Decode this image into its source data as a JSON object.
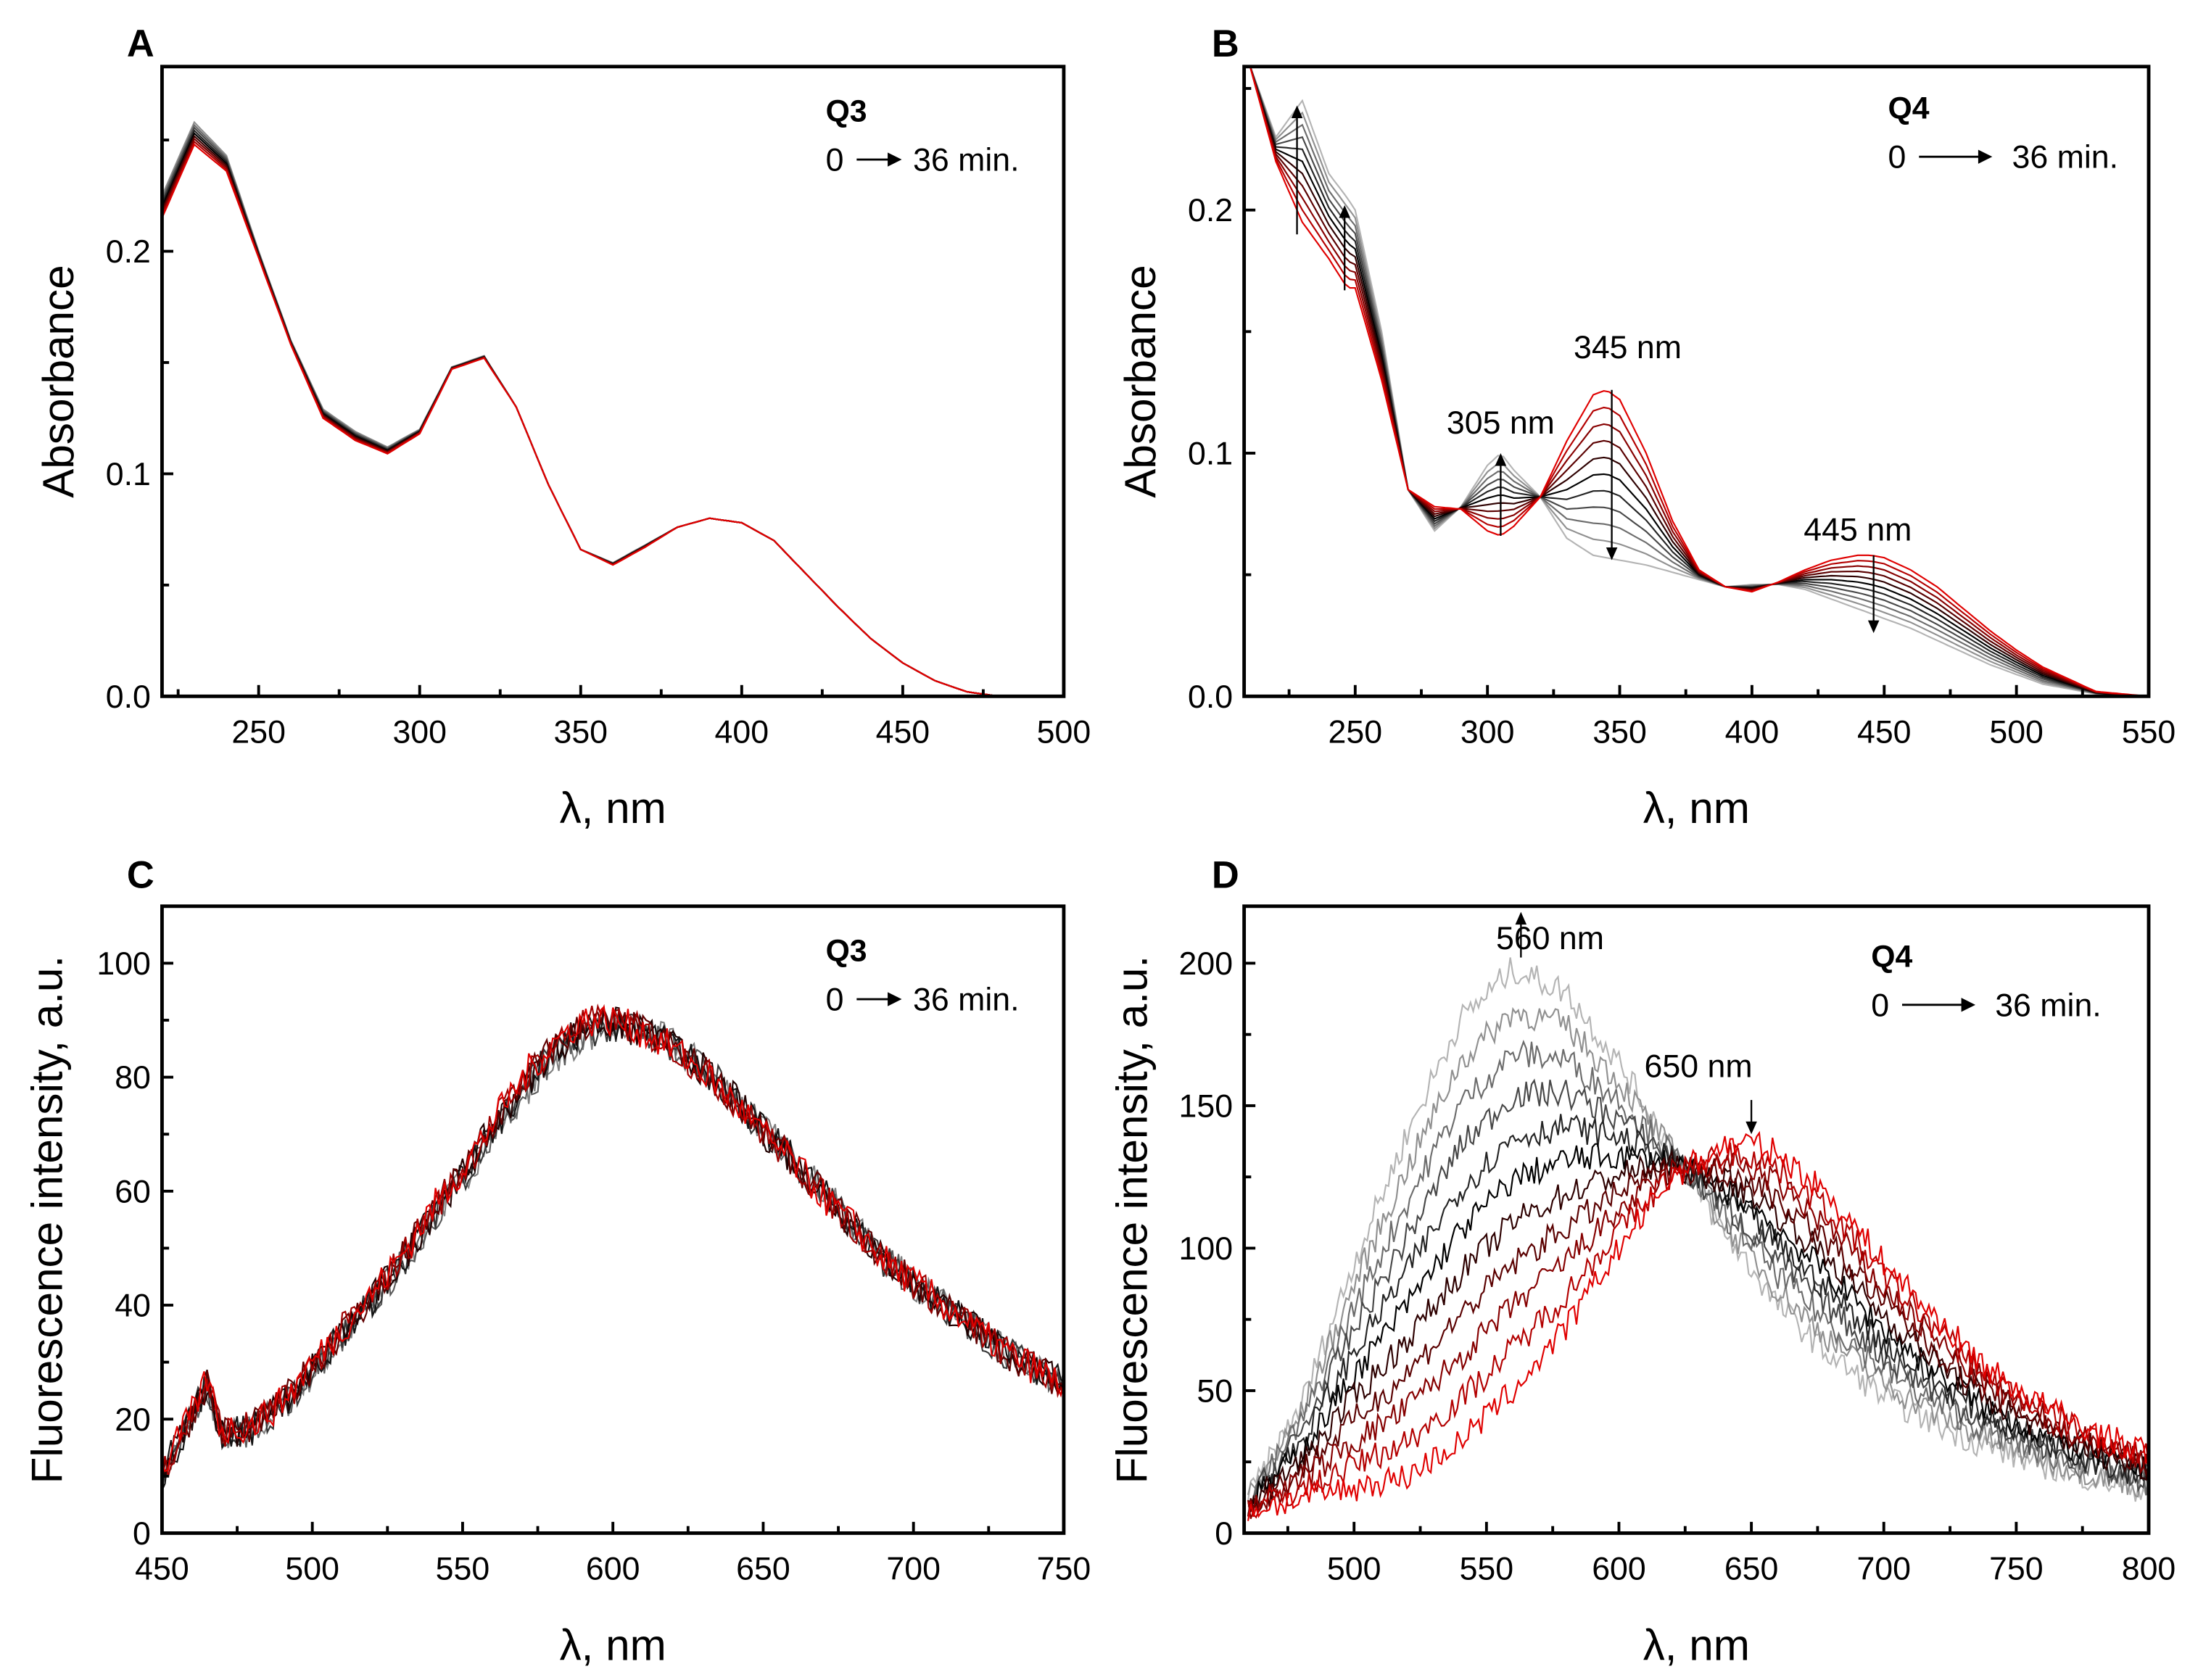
{
  "chart_data": [
    {
      "panel": "A",
      "type": "line",
      "compound": "Q3",
      "time_label": "0",
      "time_label_end": "36 min.",
      "xlabel": "λ, nm",
      "ylabel": "Absorbance",
      "xlim": [
        220,
        500
      ],
      "ylim": [
        0,
        0.283
      ],
      "xticks": [
        250,
        300,
        350,
        400,
        450,
        500
      ],
      "xtick_labels": [
        "250",
        "300",
        "350",
        "400",
        "450",
        "500"
      ],
      "yticks": [
        0,
        0.1,
        0.2
      ],
      "ytick_labels": [
        "0.0",
        "0.1",
        "0.2"
      ],
      "intermediate_curves": 7,
      "noise": 0,
      "x": [
        220,
        230,
        240,
        250,
        260,
        270,
        280,
        290,
        300,
        310,
        320,
        330,
        340,
        350,
        360,
        370,
        380,
        390,
        400,
        410,
        420,
        430,
        440,
        450,
        460,
        470,
        480
      ],
      "series": [
        {
          "name": "0 min",
          "color": "#e00000",
          "values": [
            0.215,
            0.248,
            0.236,
            0.197,
            0.158,
            0.125,
            0.115,
            0.109,
            0.118,
            0.147,
            0.152,
            0.13,
            0.095,
            0.066,
            0.059,
            0.067,
            0.076,
            0.08,
            0.078,
            0.07,
            0.055,
            0.04,
            0.026,
            0.015,
            0.007,
            0.002,
            0.0
          ]
        },
        {
          "name": "36 min",
          "color": "#909090",
          "values": [
            0.225,
            0.258,
            0.243,
            0.2,
            0.16,
            0.129,
            0.119,
            0.112,
            0.12,
            0.148,
            0.153,
            0.13,
            0.095,
            0.066,
            0.06,
            0.068,
            0.076,
            0.08,
            0.078,
            0.07,
            0.055,
            0.04,
            0.026,
            0.015,
            0.007,
            0.002,
            0.0
          ]
        }
      ],
      "annotations": []
    },
    {
      "panel": "B",
      "type": "line",
      "compound": "Q4",
      "time_label": "0",
      "time_label_end": "36 min.",
      "xlabel": "λ, nm",
      "ylabel": "Absorbance",
      "xlim": [
        208,
        550
      ],
      "ylim": [
        0,
        0.259
      ],
      "xticks": [
        250,
        300,
        350,
        400,
        450,
        500,
        550
      ],
      "xtick_labels": [
        "250",
        "300",
        "350",
        "400",
        "450",
        "500",
        "550"
      ],
      "yticks": [
        0,
        0.1,
        0.2
      ],
      "ytick_labels": [
        "0.0",
        "0.1",
        "0.2"
      ],
      "intermediate_curves": 9,
      "noise": 0,
      "x": [
        210,
        220,
        230,
        240,
        247,
        250,
        260,
        270,
        280,
        290,
        300,
        305,
        310,
        320,
        330,
        340,
        345,
        350,
        360,
        370,
        380,
        390,
        400,
        410,
        420,
        430,
        440,
        445,
        450,
        460,
        470,
        480,
        490,
        500,
        510,
        520,
        530,
        540,
        550
      ],
      "series": [
        {
          "name": "0 min",
          "color": "#e00000",
          "values": [
            0.26,
            0.22,
            0.195,
            0.18,
            0.168,
            0.168,
            0.13,
            0.085,
            0.078,
            0.077,
            0.068,
            0.066,
            0.07,
            0.082,
            0.105,
            0.124,
            0.126,
            0.122,
            0.1,
            0.072,
            0.052,
            0.045,
            0.043,
            0.047,
            0.052,
            0.056,
            0.058,
            0.058,
            0.057,
            0.052,
            0.045,
            0.036,
            0.027,
            0.019,
            0.012,
            0.007,
            0.002,
            0.001,
            0.0
          ]
        },
        {
          "name": "36 min",
          "color": "#b4b4b4",
          "values": [
            0.26,
            0.23,
            0.245,
            0.215,
            0.205,
            0.2,
            0.15,
            0.085,
            0.068,
            0.078,
            0.095,
            0.1,
            0.093,
            0.082,
            0.065,
            0.058,
            0.057,
            0.056,
            0.054,
            0.051,
            0.048,
            0.045,
            0.046,
            0.046,
            0.044,
            0.04,
            0.036,
            0.034,
            0.032,
            0.028,
            0.023,
            0.018,
            0.013,
            0.009,
            0.005,
            0.003,
            0.001,
            0.0,
            0.0
          ]
        }
      ],
      "annotations": [
        {
          "text": "305 nm",
          "x": 305,
          "from": 0.066,
          "to": 0.1,
          "label_x": 305,
          "label_y": 0.108
        },
        {
          "text": "345 nm",
          "x": 347,
          "from": 0.126,
          "to": 0.056,
          "label_x": 353,
          "label_y": 0.139
        },
        {
          "text": "445 nm",
          "x": 446,
          "from": 0.058,
          "to": 0.026,
          "label_x": 440,
          "label_y": 0.064
        }
      ],
      "extra_arrows": [
        {
          "x": 228,
          "from": 0.19,
          "to": 0.243
        },
        {
          "x": 246,
          "from": 0.167,
          "to": 0.202
        }
      ]
    },
    {
      "panel": "C",
      "type": "line",
      "compound": "Q3",
      "time_label": "0",
      "time_label_end": "36 min.",
      "xlabel": "λ, nm",
      "ylabel": "Fluorescence intensity, a.u.",
      "xlim": [
        450,
        750
      ],
      "ylim": [
        0,
        110
      ],
      "xticks": [
        450,
        500,
        550,
        600,
        650,
        700,
        750
      ],
      "xtick_labels": [
        "450",
        "500",
        "550",
        "600",
        "650",
        "700",
        "750"
      ],
      "yticks": [
        0,
        20,
        40,
        60,
        80,
        100
      ],
      "ytick_labels": [
        "0",
        "20",
        "40",
        "60",
        "80",
        "100"
      ],
      "intermediate_curves": 6,
      "noise": 3,
      "x": [
        450,
        460,
        465,
        470,
        480,
        490,
        500,
        510,
        520,
        530,
        540,
        550,
        560,
        570,
        580,
        590,
        600,
        610,
        620,
        630,
        640,
        650,
        660,
        670,
        680,
        690,
        700,
        710,
        720,
        730,
        740,
        750
      ],
      "series": [
        {
          "name": "0 min",
          "color": "#e00000",
          "values": [
            11,
            21,
            27,
            18,
            19,
            23,
            30,
            36,
            42,
            49,
            57,
            64,
            72,
            80,
            86,
            90,
            90,
            88,
            85,
            81,
            76,
            70,
            65,
            59,
            54,
            48,
            44,
            40,
            36,
            32,
            29,
            26
          ]
        },
        {
          "name": "36 min",
          "color": "#808080",
          "values": [
            10,
            20,
            26,
            17,
            18,
            22,
            28,
            34,
            40,
            47,
            55,
            62,
            70,
            77,
            83,
            87,
            89,
            88,
            86,
            82,
            77,
            71,
            66,
            60,
            54,
            48,
            44,
            40,
            36,
            32,
            29,
            26
          ]
        }
      ],
      "annotations": []
    },
    {
      "panel": "D",
      "type": "line",
      "compound": "Q4",
      "time_label": "0",
      "time_label_end": "36 min.",
      "xlabel": "λ, nm",
      "ylabel": "Fluorescence intensity, a.u.",
      "xlim": [
        458.5,
        800
      ],
      "ylim": [
        0,
        220
      ],
      "xticks": [
        500,
        550,
        600,
        650,
        700,
        750,
        800
      ],
      "xtick_labels": [
        "500",
        "550",
        "600",
        "650",
        "700",
        "750",
        "800"
      ],
      "yticks": [
        0,
        50,
        100,
        150,
        200
      ],
      "ytick_labels": [
        "0",
        "50",
        "100",
        "150",
        "200"
      ],
      "intermediate_curves": 9,
      "noise": 5,
      "x": [
        460,
        480,
        500,
        520,
        540,
        560,
        580,
        600,
        620,
        640,
        650,
        660,
        680,
        700,
        720,
        740,
        760,
        780,
        800
      ],
      "series": [
        {
          "name": "0 min",
          "color": "#e00000",
          "values": [
            8,
            12,
            16,
            20,
            32,
            50,
            72,
            100,
            125,
            136,
            137,
            133,
            118,
            95,
            75,
            57,
            45,
            35,
            28
          ]
        },
        {
          "name": "36 min",
          "color": "#b4b4b4",
          "values": [
            12,
            45,
            95,
            140,
            180,
            198,
            190,
            165,
            135,
            105,
            93,
            80,
            62,
            48,
            38,
            30,
            24,
            19,
            15
          ]
        }
      ],
      "annotations": [
        {
          "text": "560 nm",
          "x": 563,
          "from": 202,
          "to": 218,
          "label_x": 574,
          "label_y": 205
        },
        {
          "text": "650 nm",
          "x": 650,
          "from": 152,
          "to": 140,
          "label_x": 630,
          "label_y": 160
        }
      ]
    }
  ]
}
